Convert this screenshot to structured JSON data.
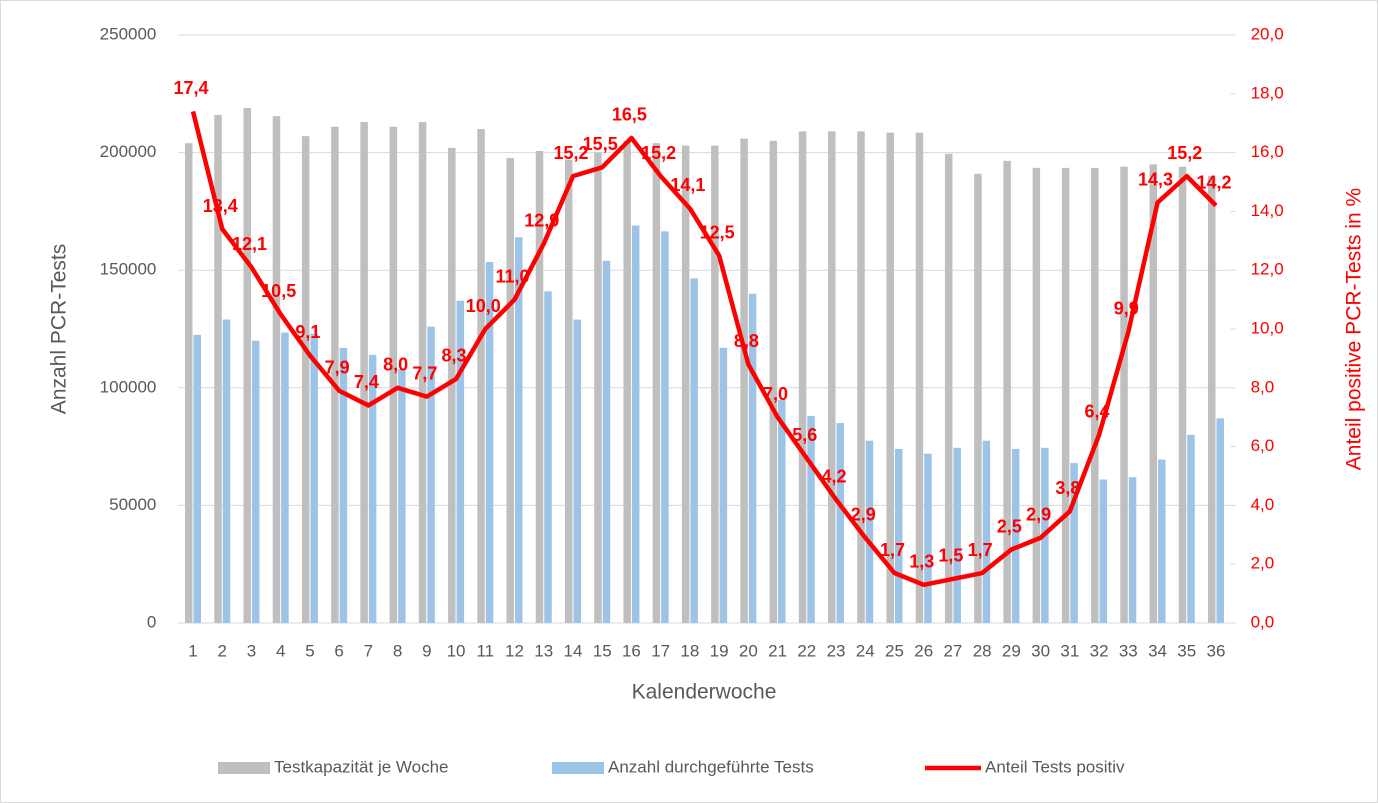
{
  "chart_data": {
    "type": "bar",
    "x_label": "Kalenderwoche",
    "y_label": "Anzahl PCR-Tests",
    "y2_label": "Anteil positive PCR-Tests in %",
    "categories": [
      "1",
      "2",
      "3",
      "4",
      "5",
      "6",
      "7",
      "8",
      "9",
      "10",
      "11",
      "12",
      "13",
      "14",
      "15",
      "16",
      "17",
      "18",
      "19",
      "20",
      "21",
      "22",
      "23",
      "24",
      "25",
      "26",
      "27",
      "28",
      "29",
      "30",
      "31",
      "32",
      "33",
      "34",
      "35",
      "36"
    ],
    "series": [
      {
        "name": "Testkapazität je Woche",
        "type": "bar",
        "color": "#bfbfbf",
        "values": [
          204000,
          216000,
          219000,
          215500,
          207000,
          211000,
          213000,
          211000,
          213000,
          202000,
          210000,
          197700,
          200700,
          197000,
          200000,
          205000,
          204000,
          203000,
          203000,
          206000,
          205000,
          209000,
          209000,
          209000,
          208500,
          208500,
          199500,
          191000,
          196500,
          193500,
          193500,
          193500,
          194000,
          195000,
          194000,
          190000
        ]
      },
      {
        "name": "Anzahl durchgeführte Tests",
        "type": "bar",
        "color": "#9dc3e6",
        "values": [
          122500,
          129000,
          120000,
          123500,
          123000,
          117000,
          114000,
          108000,
          126000,
          137000,
          153500,
          164000,
          141000,
          129000,
          154000,
          169000,
          166500,
          146500,
          117000,
          140000,
          95000,
          88000,
          85000,
          77500,
          74000,
          72000,
          74500,
          77500,
          74000,
          74500,
          68000,
          61000,
          62000,
          69500,
          80000,
          87000
        ]
      },
      {
        "name": "Anteil Tests positiv",
        "type": "line",
        "axis": "y2",
        "color": "#ff0000",
        "values": [
          17.4,
          13.4,
          12.1,
          10.5,
          9.1,
          7.9,
          7.4,
          8.0,
          7.7,
          8.3,
          10.0,
          11.0,
          12.9,
          15.2,
          15.5,
          16.5,
          15.2,
          14.1,
          12.5,
          8.8,
          7.0,
          5.6,
          4.2,
          2.9,
          1.7,
          1.3,
          1.5,
          1.7,
          2.5,
          2.9,
          3.8,
          6.4,
          9.9,
          14.3,
          15.2,
          14.2
        ],
        "value_labels": [
          "17,4",
          "13,4",
          "12,1",
          "10,5",
          "9,1",
          "7,9",
          "7,4",
          "8,0",
          "7,7",
          "8,3",
          "10,0",
          "11,0",
          "12,9",
          "15,2",
          "15,5",
          "16,5",
          "15,2",
          "14,1",
          "12,5",
          "8,8",
          "7,0",
          "5,6",
          "4,2",
          "2,9",
          "1,7",
          "1,3",
          "1,5",
          "1,7",
          "2,5",
          "2,9",
          "3,8",
          "6,4",
          "9,9",
          "14,3",
          "15,2",
          "14,2"
        ]
      }
    ],
    "ylim": [
      0,
      250000
    ],
    "yticks": [
      0,
      50000,
      100000,
      150000,
      200000,
      250000
    ],
    "y2lim": [
      0,
      20
    ],
    "y2ticks": [
      {
        "value": 0,
        "label": "0,0"
      },
      {
        "value": 2,
        "label": "2,0"
      },
      {
        "value": 4,
        "label": "4,0"
      },
      {
        "value": 6,
        "label": "6,0"
      },
      {
        "value": 8,
        "label": "8,0"
      },
      {
        "value": 10,
        "label": "10,0"
      },
      {
        "value": 12,
        "label": "12,0"
      },
      {
        "value": 14,
        "label": "14,0"
      },
      {
        "value": 16,
        "label": "16,0"
      },
      {
        "value": 18,
        "label": "18,0"
      },
      {
        "value": 20,
        "label": "20,0"
      }
    ],
    "grid": true,
    "legend": "bottom"
  }
}
